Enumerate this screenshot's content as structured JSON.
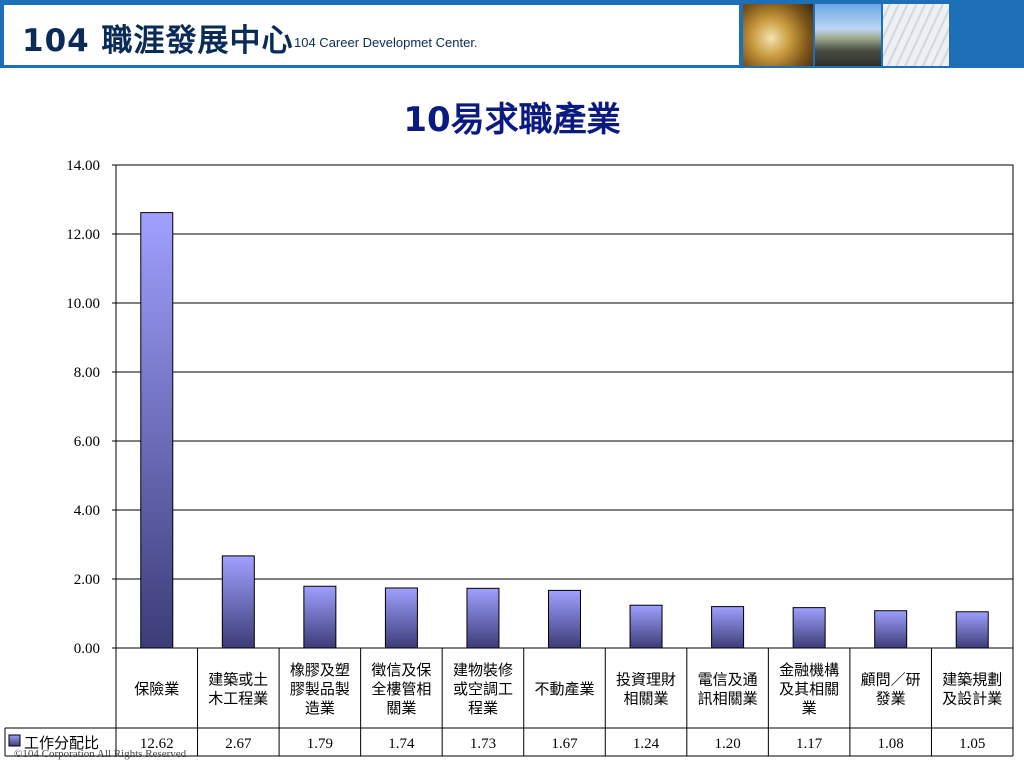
{
  "header": {
    "logo_main": "104 職涯發展中心",
    "logo_sub": "104 Career Developmet Center."
  },
  "title": "10易求職產業",
  "chart_data": {
    "type": "bar",
    "title": "10易求職產業",
    "categories": [
      "保險業",
      "建築或土木工程業",
      "橡膠及塑膠製品製造業",
      "徵信及保全樓管相關業",
      "建物裝修或空調工程業",
      "不動產業",
      "投資理財相關業",
      "電信及通訊相關業",
      "金融機構及其相關業",
      "顧問／研發業",
      "建築規劃及設計業"
    ],
    "category_lines": [
      [
        "保險業"
      ],
      [
        "建築或土",
        "木工程業"
      ],
      [
        "橡膠及塑",
        "膠製品製",
        "造業"
      ],
      [
        "徵信及保",
        "全樓管相",
        "關業"
      ],
      [
        "建物裝修",
        "或空調工",
        "程業"
      ],
      [
        "不動產業"
      ],
      [
        "投資理財",
        "相關業"
      ],
      [
        "電信及通",
        "訊相關業"
      ],
      [
        "金融機構",
        "及其相關",
        "業"
      ],
      [
        "顧問／研",
        "發業"
      ],
      [
        "建築規劃",
        "及設計業"
      ]
    ],
    "series": [
      {
        "name": "工作分配比",
        "values": [
          12.62,
          2.67,
          1.79,
          1.74,
          1.73,
          1.67,
          1.24,
          1.2,
          1.17,
          1.08,
          1.05
        ]
      }
    ],
    "value_labels": [
      "12.62",
      "2.67",
      "1.79",
      "1.74",
      "1.73",
      "1.67",
      "1.24",
      "1.20",
      "1.17",
      "1.08",
      "1.05"
    ],
    "ylim": [
      0,
      14
    ],
    "yticks": [
      "0.00",
      "2.00",
      "4.00",
      "6.00",
      "8.00",
      "10.00",
      "12.00",
      "14.00"
    ],
    "grid": true,
    "legend": "bottom-left, in data table",
    "bar_color_top": "#a0a0ff",
    "bar_color_bottom": "#3c3c78"
  },
  "footer": "©104 Corporation All Rights Reserved"
}
